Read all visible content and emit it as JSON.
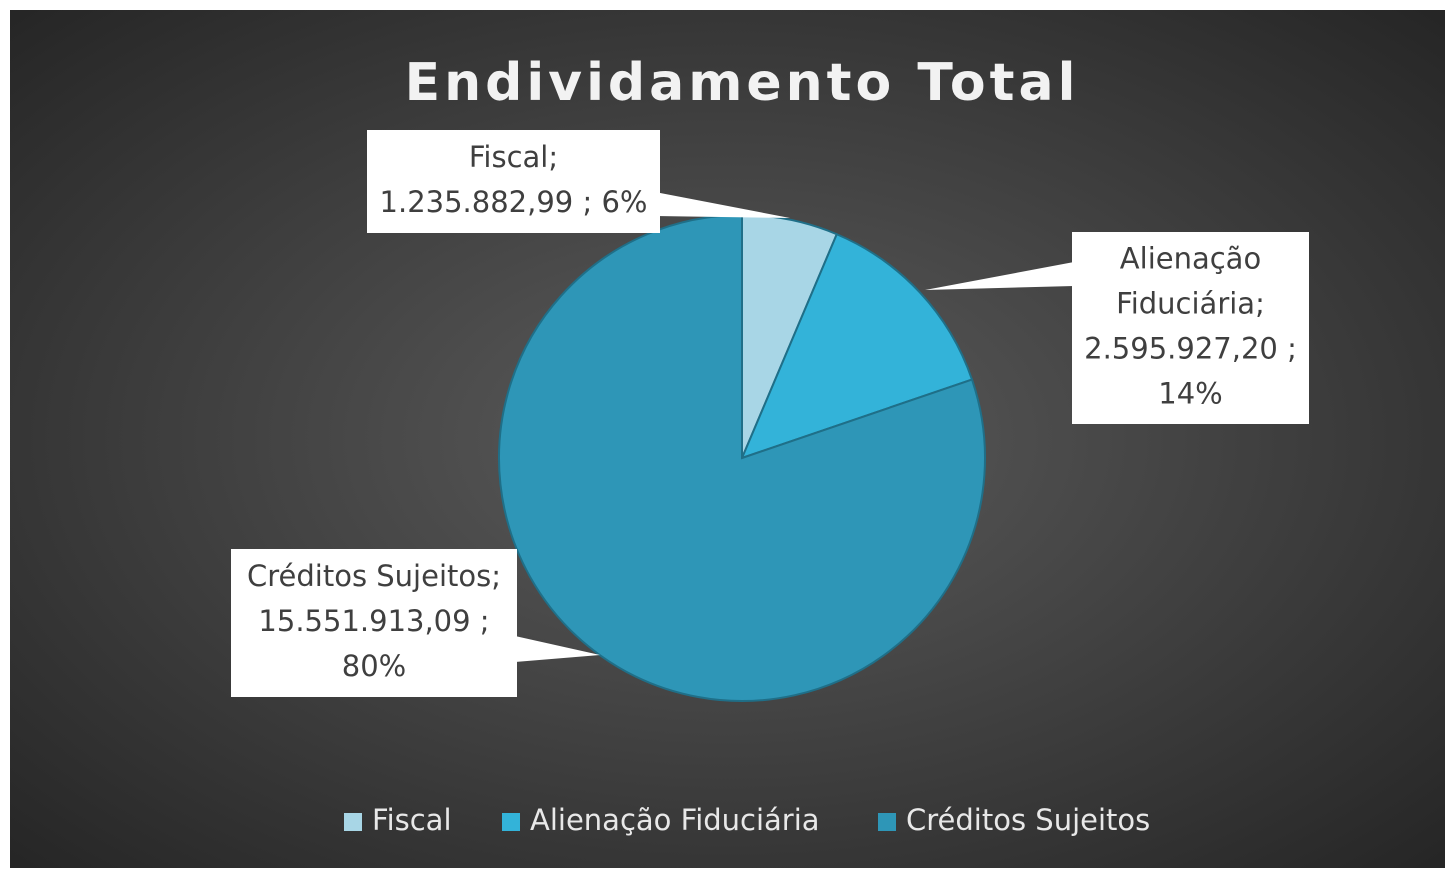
{
  "chart_data": {
    "type": "pie",
    "title": "Endividamento Total",
    "categories": [
      "Fiscal",
      "Alienação Fiduciária",
      "Créditos Sujeitos"
    ],
    "values": [
      1235882.99,
      2595927.2,
      15551913.09
    ],
    "value_labels": [
      [
        "Fiscal;",
        "1.235.882,99 ; 6%"
      ],
      [
        "Alienação",
        "Fiduciária;",
        "2.595.927,20 ;",
        "14%"
      ],
      [
        "Créditos Sujeitos;",
        "15.551.913,09 ;",
        "80%"
      ]
    ],
    "colors": [
      "#a8d6e6",
      "#33b3d9",
      "#2e96b7"
    ],
    "legend": "bottom"
  }
}
